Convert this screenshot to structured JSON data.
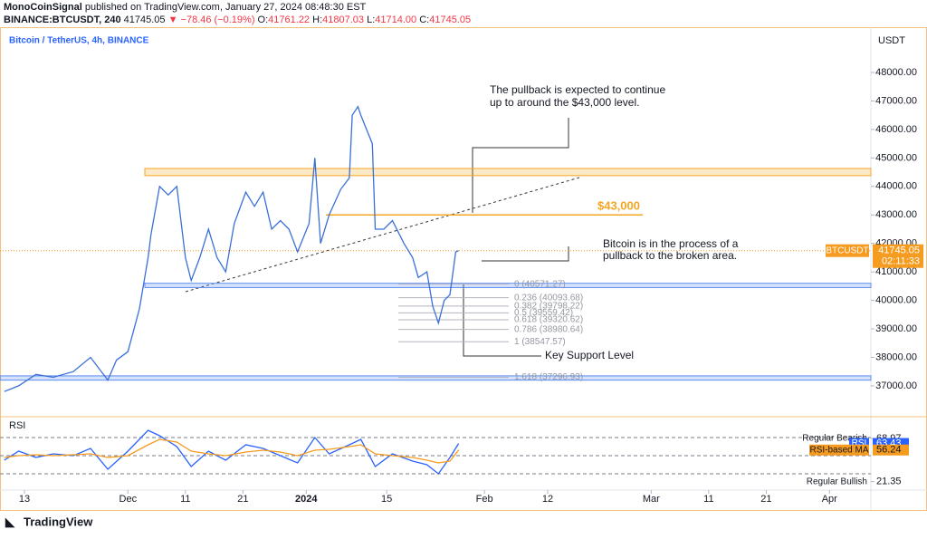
{
  "header": {
    "publisher": "MonoCoinSignal",
    "published": "published on TradingView.com, January 27, 2024 08:48:30 EST",
    "symbol": "BINANCE:BTCUSDT, 240",
    "last": "41745.05",
    "change": "▼ −78.46 (−0.19%)",
    "ohlc": [
      {
        "key": "O:",
        "value": "41761.22"
      },
      {
        "key": "H:",
        "value": "41807.03"
      },
      {
        "key": "L:",
        "value": "41714.00"
      },
      {
        "key": "C:",
        "value": "41745.05"
      }
    ]
  },
  "chart_data": [
    {
      "type": "line",
      "title": "Bitcoin / TetherUS, 4h, BINANCE",
      "currency": "USDT",
      "x": [
        -3.5,
        -1,
        2,
        5,
        8.5,
        11.5,
        14.5,
        16,
        18,
        20,
        21.5,
        22,
        23.5,
        25,
        26.5,
        28,
        29,
        30.5,
        32,
        33.5,
        35,
        36.5,
        38.5,
        40,
        41.5,
        43,
        44.5,
        46,
        47.5,
        49.5,
        50.5,
        51.5,
        53,
        55,
        56.5,
        57,
        58,
        58.5,
        59.5,
        60.5,
        61,
        62.5,
        64,
        66,
        67.5,
        68.5,
        70,
        71,
        72,
        73,
        74,
        75,
        75.5
      ],
      "series": [
        {
          "name": "BTCUSDT",
          "color": "#3a6fd8",
          "values": [
            36800,
            37000,
            37400,
            37300,
            37500,
            38000,
            37200,
            37900,
            38200,
            39700,
            41500,
            42300,
            44000,
            43700,
            44000,
            41500,
            40700,
            41500,
            42500,
            41500,
            41000,
            42700,
            43800,
            43300,
            43800,
            42500,
            42800,
            42500,
            41700,
            42700,
            45000,
            42000,
            43000,
            43900,
            44300,
            46500,
            46800,
            46500,
            46000,
            45500,
            42500,
            42500,
            42800,
            42000,
            41500,
            40800,
            41000,
            39800,
            39200,
            40000,
            40200,
            41700,
            41745.05
          ]
        }
      ],
      "last_price": 41745.05,
      "countdown": "02:11:33",
      "xlim": [
        -4.25,
        147.2
      ],
      "xticks": [
        {
          "value": 0,
          "label": "13"
        },
        {
          "value": 18,
          "label": "Dec"
        },
        {
          "value": 28,
          "label": "11"
        },
        {
          "value": 38,
          "label": "21"
        },
        {
          "value": 49,
          "label": "2024"
        },
        {
          "value": 63,
          "label": "15"
        },
        {
          "value": 80,
          "label": "Feb"
        },
        {
          "value": 91,
          "label": "12"
        },
        {
          "value": 109,
          "label": "Mar"
        },
        {
          "value": 119,
          "label": "11"
        },
        {
          "value": 129,
          "label": "21"
        },
        {
          "value": 140,
          "label": "Apr"
        }
      ],
      "ylim": [
        35980,
        49590
      ],
      "yticks": [
        {
          "value": 37000,
          "label": "37000.00"
        },
        {
          "value": 38000,
          "label": "38000.00"
        },
        {
          "value": 39000,
          "label": "39000.00"
        },
        {
          "value": 40000,
          "label": "40000.00"
        },
        {
          "value": 41000,
          "label": "41000.00"
        },
        {
          "value": 42000,
          "label": "42000.00"
        },
        {
          "value": 43000,
          "label": "43000.00"
        },
        {
          "value": 44000,
          "label": "44000.00"
        },
        {
          "value": 45000,
          "label": "45000.00"
        },
        {
          "value": 46000,
          "label": "46000.00"
        },
        {
          "value": 47000,
          "label": "47000.00"
        },
        {
          "value": 48000,
          "label": "48000.00"
        }
      ],
      "zones": [
        {
          "from": 44380,
          "to": 44630,
          "color": "#f5a623"
        },
        {
          "from": 40450,
          "to": 40600,
          "color": "#5b8def"
        },
        {
          "from": 37200,
          "to": 37350,
          "color": "#5b8def"
        }
      ],
      "target": {
        "value": 43000,
        "label": "$43,000",
        "color": "#f5a623"
      },
      "fib": [
        {
          "value": 40571.27,
          "label": "0 (40571.27)"
        },
        {
          "value": 40093.68,
          "label": "0.236 (40093.68)"
        },
        {
          "value": 39798.22,
          "label": "0.382 (39798.22)"
        },
        {
          "value": 39559.42,
          "label": "0.5 (39559.42)"
        },
        {
          "value": 39320.62,
          "label": "0.618 (39320.62)"
        },
        {
          "value": 38980.64,
          "label": "0.786 (38980.64)"
        },
        {
          "value": 38547.57,
          "label": "1 (38547.57)"
        },
        {
          "value": 37296.93,
          "label": "1.618 (37296.93)"
        }
      ],
      "annotations": [
        [
          "The pullback is expected to continue",
          "up to around the $43,000 level."
        ],
        [
          "Bitcoin is in the process of a",
          "pullback to the broken area."
        ],
        [
          "Key Support Level"
        ]
      ]
    },
    {
      "type": "line",
      "title": "RSI",
      "x": [
        -3.5,
        -1,
        2,
        5,
        8.5,
        11.5,
        14.5,
        18,
        21.5,
        23.5,
        26.5,
        29,
        32,
        35,
        38.5,
        41.5,
        44.5,
        47.5,
        50.5,
        53,
        56.5,
        58.5,
        61,
        64,
        67.5,
        70,
        72,
        74,
        75.5
      ],
      "series": [
        {
          "name": "RSI",
          "color": "#2962ff",
          "values": [
            45,
            55,
            48,
            52,
            50,
            58,
            35,
            55,
            78,
            72,
            60,
            38,
            55,
            45,
            62,
            58,
            50,
            42,
            70,
            52,
            62,
            68,
            38,
            52,
            44,
            40,
            30,
            48,
            63.43
          ]
        },
        {
          "name": "RSI-based MA",
          "color": "#f59b1f",
          "values": [
            48,
            50,
            51,
            50,
            51,
            52,
            48,
            50,
            62,
            68,
            65,
            55,
            52,
            50,
            54,
            56,
            54,
            50,
            56,
            57,
            60,
            62,
            52,
            50,
            48,
            45,
            42,
            44,
            56.24
          ]
        }
      ],
      "ylim": [
        13,
        91
      ],
      "bands": [
        70,
        50,
        30
      ],
      "levels": [
        {
          "label": "Regular Bearish",
          "value": 68.97
        },
        {
          "label": "Regular Bullish",
          "value": 21.35
        }
      ]
    }
  ],
  "footer": "TradingView"
}
